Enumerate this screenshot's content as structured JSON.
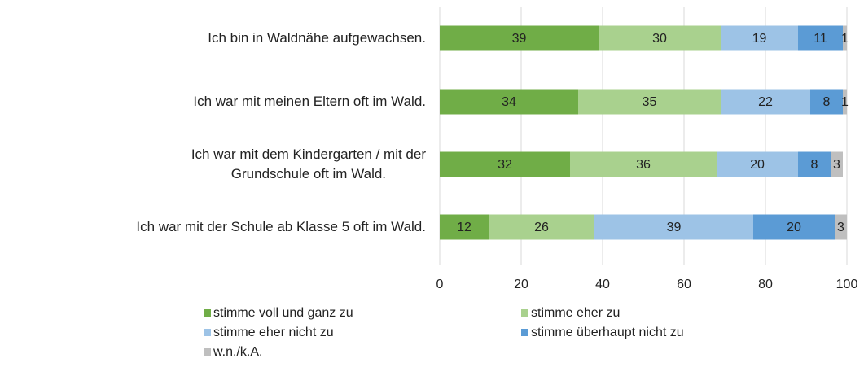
{
  "chart_data": {
    "type": "stacked-bar-horizontal",
    "categories": [
      "Ich bin in Waldnähe aufgewachsen.",
      "Ich war mit meinen Eltern oft im Wald.",
      "Ich war mit dem Kindergarten / mit der\nGrundschule oft im Wald.",
      "Ich war mit der Schule ab Klasse 5 oft im Wald."
    ],
    "series": [
      {
        "name": "stimme voll und ganz zu",
        "color": "#70ad47",
        "values": [
          39,
          34,
          32,
          12
        ]
      },
      {
        "name": "stimme eher zu",
        "color": "#a9d18e",
        "values": [
          30,
          35,
          36,
          26
        ]
      },
      {
        "name": "stimme eher nicht zu",
        "color": "#9dc3e6",
        "values": [
          19,
          22,
          20,
          39
        ]
      },
      {
        "name": "stimme überhaupt nicht zu",
        "color": "#5b9bd5",
        "values": [
          11,
          8,
          8,
          20
        ]
      },
      {
        "name": "w.n./k.A.",
        "color": "#bfbfbf",
        "values": [
          1,
          1,
          3,
          3
        ]
      }
    ],
    "xlim": [
      0,
      100
    ],
    "xticks": [
      0,
      20,
      40,
      60,
      80,
      100
    ],
    "grid": true
  }
}
